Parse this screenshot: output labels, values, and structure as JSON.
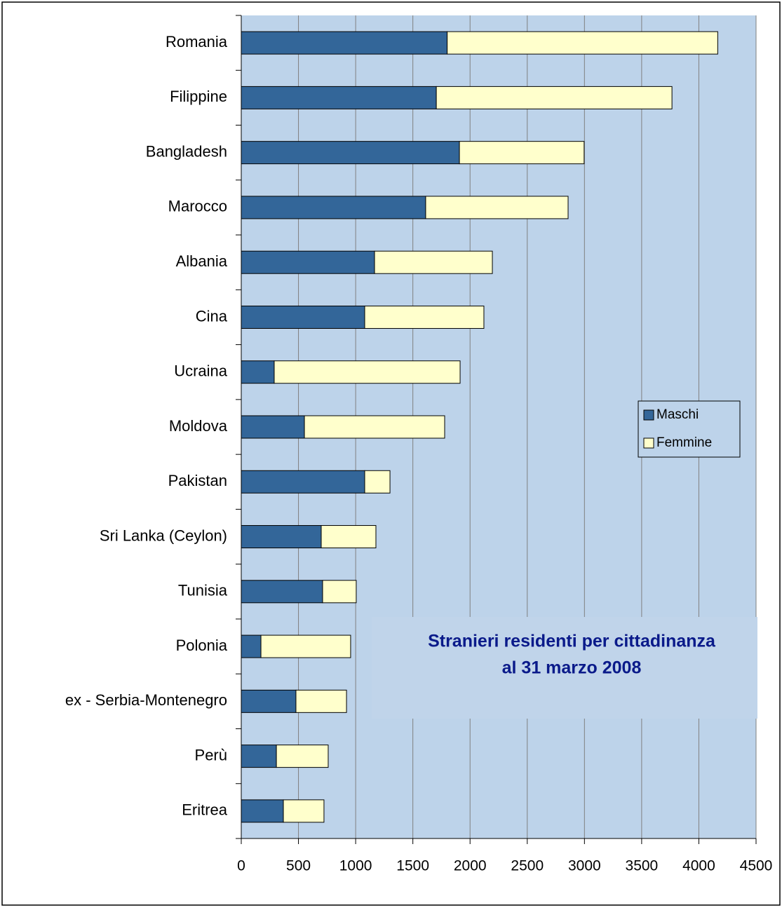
{
  "chart_data": {
    "type": "stacked-bar-horizontal",
    "title": "Stranieri residenti per cittadinanza",
    "subtitle": "al 31 marzo 2008",
    "categories": [
      "Romania",
      "Filippine",
      "Bangladesh",
      "Marocco",
      "Albania",
      "Cina",
      "Ucraina",
      "Moldova",
      "Pakistan",
      "Sri Lanka (Ceylon)",
      "Tunisia",
      "Polonia",
      "ex - Serbia-Montenegro",
      "Perù",
      "Eritrea"
    ],
    "series": [
      {
        "name": "Maschi",
        "color": "#336699",
        "values": [
          1800,
          1705,
          1907,
          1612,
          1165,
          1079,
          288,
          552,
          1079,
          699,
          711,
          172,
          478,
          307,
          368
        ]
      },
      {
        "name": "Femmine",
        "color": "#ffffcc",
        "values": [
          2365,
          2060,
          1090,
          1245,
          1030,
          1042,
          1625,
          1226,
          221,
          478,
          294,
          784,
          442,
          453,
          355
        ]
      }
    ],
    "xlim": [
      0,
      4500
    ],
    "xticks": [
      0,
      500,
      1000,
      1500,
      2000,
      2500,
      3000,
      3500,
      4000,
      4500
    ],
    "grid": true,
    "legend": "right"
  }
}
